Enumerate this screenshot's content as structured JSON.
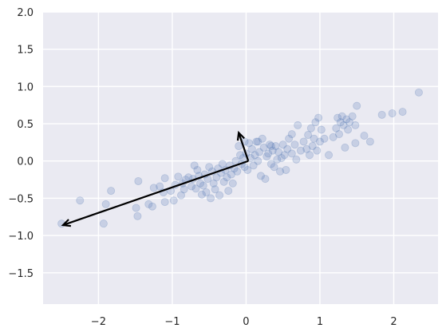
{
  "chart_data": {
    "type": "scatter",
    "title": "",
    "xlabel": "",
    "ylabel": "",
    "xlim": [
      -2.75,
      2.6
    ],
    "ylim": [
      -1.92,
      2.0
    ],
    "grid": true,
    "colors": {
      "background": "#eaeaf2",
      "grid": "#ffffff",
      "points": "#4c72b0",
      "arrows": "#000000",
      "tick_text": "#262626"
    },
    "x_ticks": [
      {
        "value": -2,
        "label": "−2"
      },
      {
        "value": -1,
        "label": "−1"
      },
      {
        "value": 0,
        "label": "0"
      },
      {
        "value": 1,
        "label": "1"
      },
      {
        "value": 2,
        "label": "2"
      }
    ],
    "y_ticks": [
      {
        "value": 2.0,
        "label": "2.0"
      },
      {
        "value": 1.5,
        "label": "1.5"
      },
      {
        "value": 1.0,
        "label": "1.0"
      },
      {
        "value": 0.5,
        "label": "0.5"
      },
      {
        "value": 0.0,
        "label": "0.0"
      },
      {
        "value": -0.5,
        "label": "−0.5"
      },
      {
        "value": -1.0,
        "label": "−1.0"
      },
      {
        "value": -1.5,
        "label": "−1.5"
      }
    ],
    "arrows": [
      {
        "from": [
          0.03,
          0.0
        ],
        "to": [
          -2.48,
          -0.86
        ]
      },
      {
        "from": [
          0.03,
          0.0
        ],
        "to": [
          -0.1,
          0.38
        ]
      }
    ],
    "points": [
      [
        -2.5,
        -0.84
      ],
      [
        -2.25,
        -0.53
      ],
      [
        -1.93,
        -0.84
      ],
      [
        -1.9,
        -0.58
      ],
      [
        -1.83,
        -0.4
      ],
      [
        -1.49,
        -0.63
      ],
      [
        -1.47,
        -0.74
      ],
      [
        -1.46,
        -0.27
      ],
      [
        -1.32,
        -0.58
      ],
      [
        -1.27,
        -0.61
      ],
      [
        -1.25,
        -0.36
      ],
      [
        -1.17,
        -0.34
      ],
      [
        -1.12,
        -0.42
      ],
      [
        -1.1,
        -0.55
      ],
      [
        -1.1,
        -0.23
      ],
      [
        -1.02,
        -0.4
      ],
      [
        -0.98,
        -0.53
      ],
      [
        -0.96,
        -0.32
      ],
      [
        -0.92,
        -0.21
      ],
      [
        -0.88,
        -0.46
      ],
      [
        -0.86,
        -0.3
      ],
      [
        -0.84,
        -0.38
      ],
      [
        -0.82,
        -0.25
      ],
      [
        -0.78,
        -0.22
      ],
      [
        -0.74,
        -0.34
      ],
      [
        -0.72,
        -0.24
      ],
      [
        -0.7,
        -0.06
      ],
      [
        -0.68,
        -0.37
      ],
      [
        -0.66,
        -0.12
      ],
      [
        -0.64,
        -0.2
      ],
      [
        -0.62,
        -0.3
      ],
      [
        -0.6,
        -0.45
      ],
      [
        -0.58,
        -0.33
      ],
      [
        -0.56,
        -0.18
      ],
      [
        -0.54,
        -0.42
      ],
      [
        -0.52,
        -0.24
      ],
      [
        -0.5,
        -0.08
      ],
      [
        -0.48,
        -0.5
      ],
      [
        -0.46,
        -0.14
      ],
      [
        -0.44,
        -0.3
      ],
      [
        -0.42,
        -0.38
      ],
      [
        -0.4,
        -0.22
      ],
      [
        -0.38,
        -0.1
      ],
      [
        -0.36,
        -0.46
      ],
      [
        -0.34,
        -0.16
      ],
      [
        -0.32,
        -0.04
      ],
      [
        -0.3,
        -0.28
      ],
      [
        -0.28,
        -0.12
      ],
      [
        -0.26,
        -0.22
      ],
      [
        -0.24,
        -0.4
      ],
      [
        -0.22,
        -0.06
      ],
      [
        -0.2,
        -0.18
      ],
      [
        -0.18,
        -0.3
      ],
      [
        -0.16,
        -0.1
      ],
      [
        -0.14,
        0.0
      ],
      [
        -0.12,
        -0.14
      ],
      [
        -0.1,
        0.2
      ],
      [
        -0.08,
        0.08
      ],
      [
        -0.06,
        -0.04
      ],
      [
        -0.04,
        0.04
      ],
      [
        -0.02,
        -0.08
      ],
      [
        0.0,
        0.1
      ],
      [
        0.02,
        -0.12
      ],
      [
        0.04,
        0.24
      ],
      [
        0.06,
        0.04
      ],
      [
        0.08,
        0.16
      ],
      [
        0.1,
        -0.06
      ],
      [
        0.12,
        0.08
      ],
      [
        0.14,
        0.26
      ],
      [
        0.16,
        0.0
      ],
      [
        0.18,
        0.12
      ],
      [
        0.2,
        -0.2
      ],
      [
        0.22,
        0.3
      ],
      [
        0.24,
        0.18
      ],
      [
        0.26,
        -0.24
      ],
      [
        0.28,
        0.06
      ],
      [
        0.3,
        0.1
      ],
      [
        0.32,
        0.22
      ],
      [
        0.34,
        -0.04
      ],
      [
        0.36,
        0.14
      ],
      [
        0.38,
        -0.08
      ],
      [
        0.4,
        0.2
      ],
      [
        0.42,
        0.02
      ],
      [
        0.44,
        0.12
      ],
      [
        0.46,
        -0.14
      ],
      [
        0.48,
        0.04
      ],
      [
        0.5,
        0.22
      ],
      [
        0.52,
        0.08
      ],
      [
        0.54,
        -0.12
      ],
      [
        0.56,
        0.16
      ],
      [
        0.58,
        0.3
      ],
      [
        0.62,
        0.1
      ],
      [
        0.66,
        0.22
      ],
      [
        0.68,
        0.02
      ],
      [
        0.7,
        0.48
      ],
      [
        0.74,
        0.14
      ],
      [
        0.78,
        0.26
      ],
      [
        0.82,
        0.16
      ],
      [
        0.84,
        0.35
      ],
      [
        0.86,
        0.08
      ],
      [
        0.88,
        0.44
      ],
      [
        0.9,
        0.2
      ],
      [
        0.92,
        0.3
      ],
      [
        0.94,
        0.52
      ],
      [
        0.96,
        0.14
      ],
      [
        0.98,
        0.58
      ],
      [
        1.0,
        0.26
      ],
      [
        1.02,
        0.42
      ],
      [
        1.06,
        0.3
      ],
      [
        1.12,
        0.08
      ],
      [
        1.18,
        0.32
      ],
      [
        1.22,
        0.44
      ],
      [
        1.24,
        0.58
      ],
      [
        1.26,
        0.36
      ],
      [
        1.28,
        0.52
      ],
      [
        1.3,
        0.6
      ],
      [
        1.32,
        0.48
      ],
      [
        1.34,
        0.18
      ],
      [
        1.36,
        0.56
      ],
      [
        1.38,
        0.42
      ],
      [
        1.4,
        0.52
      ],
      [
        1.44,
        0.6
      ],
      [
        1.48,
        0.24
      ],
      [
        1.48,
        0.48
      ],
      [
        1.5,
        0.74
      ],
      [
        1.6,
        0.34
      ],
      [
        1.68,
        0.26
      ],
      [
        1.84,
        0.62
      ],
      [
        1.98,
        0.64
      ],
      [
        2.12,
        0.66
      ],
      [
        2.34,
        0.92
      ],
      [
        -0.02,
        0.26
      ],
      [
        0.16,
        0.26
      ],
      [
        0.34,
        0.2
      ],
      [
        0.62,
        0.36
      ]
    ]
  }
}
